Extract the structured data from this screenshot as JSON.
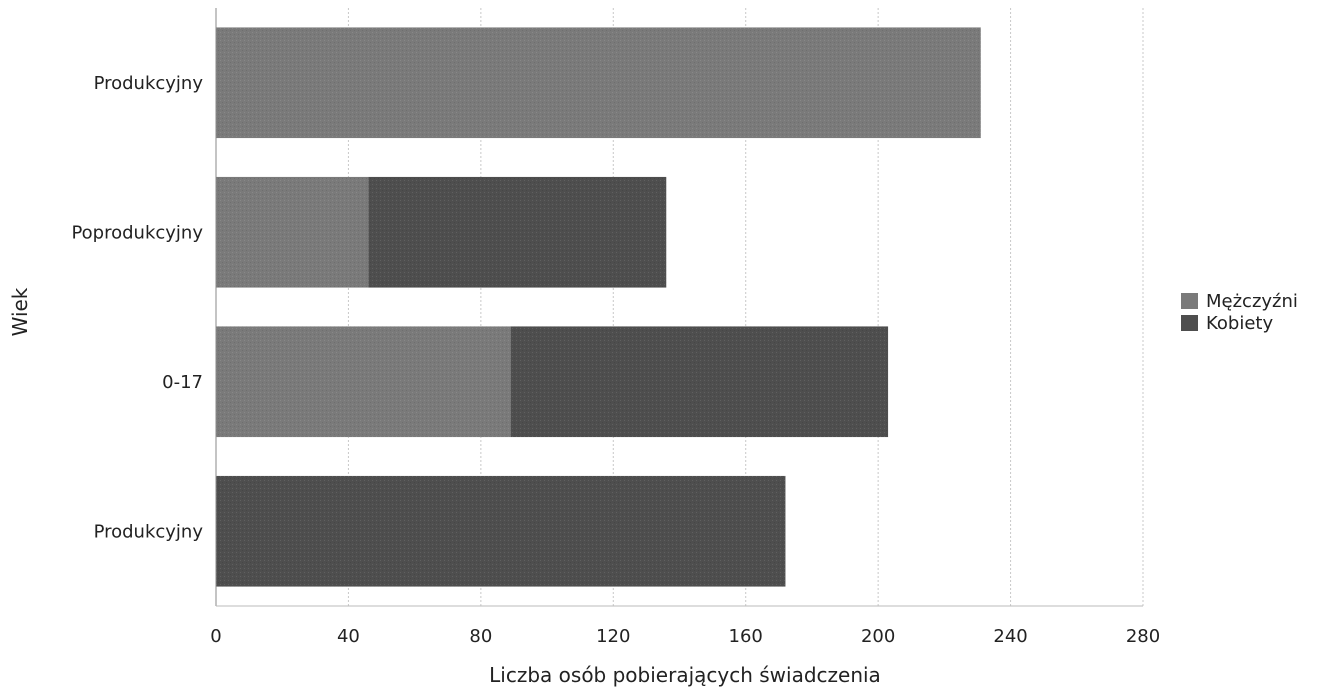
{
  "chart_data": {
    "type": "bar",
    "orientation": "horizontal",
    "stacked": true,
    "categories": [
      "Produkcyjny",
      "Poprodukcyjny",
      "0-17",
      "Produkcyjny"
    ],
    "series": [
      {
        "name": "Mężczyźni",
        "values": [
          231,
          46,
          89,
          0
        ],
        "color": "#7a7a7a"
      },
      {
        "name": "Kobiety",
        "values": [
          0,
          90,
          114,
          172
        ],
        "color": "#4e4e4e"
      }
    ],
    "xlabel": "Liczba osób pobierających świadczenia",
    "ylabel": "Wiek",
    "xlim": [
      0,
      280
    ],
    "xticks": [
      "0",
      "40",
      "80",
      "120",
      "160",
      "200",
      "240",
      "280"
    ],
    "grid": "vertical dashed",
    "legend_position": "right"
  }
}
